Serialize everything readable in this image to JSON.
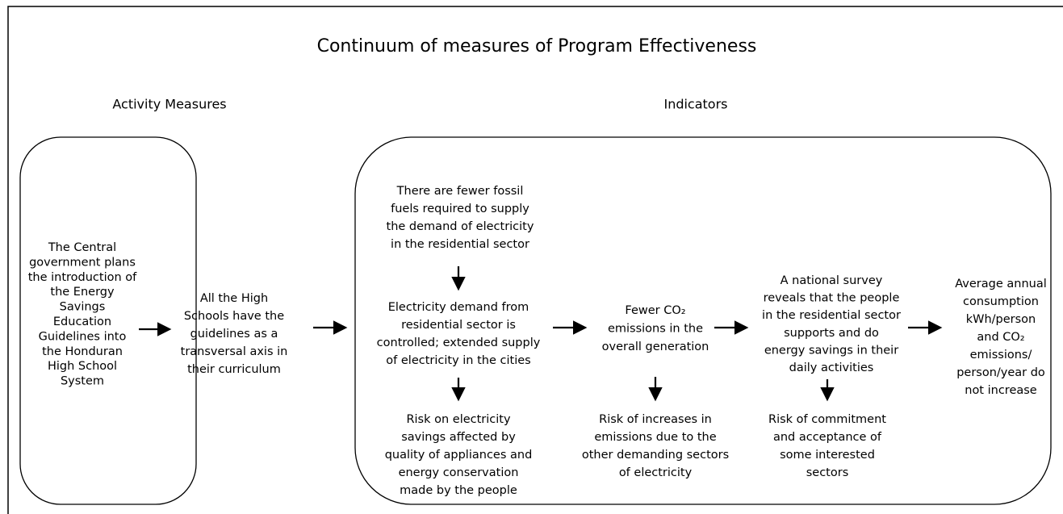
{
  "title": "Continuum of measures of Program Effectiveness",
  "sections": [
    "Activity Measures",
    "Indicators"
  ],
  "nodes": [
    {
      "lines": [
        "The Central",
        "government plans",
        "the introduction of",
        "the Energy",
        "Savings",
        "Education",
        "Guidelines into",
        "the Honduran",
        "High School",
        "System"
      ]
    },
    {
      "lines": [
        "All the High",
        "Schools have the",
        "guidelines as a",
        "transversal axis in",
        "their curriculum"
      ]
    },
    {
      "lines": [
        "There are fewer fossil",
        "fuels required to supply",
        "the demand of electricity",
        "in the residential sector"
      ]
    },
    {
      "lines": [
        "Electricity demand from",
        "residential sector is",
        "controlled; extended supply",
        "of electricity in the cities"
      ]
    },
    {
      "lines": [
        "Risk on electricity",
        "savings affected by",
        "quality of appliances and",
        "energy conservation",
        "made by the people"
      ]
    },
    {
      "lines": [
        "Fewer CO₂",
        "emissions in the",
        "overall generation"
      ]
    },
    {
      "lines": [
        "Risk of increases in",
        "emissions due to the",
        "other demanding sectors",
        "of electricity"
      ]
    },
    {
      "lines": [
        "A national survey",
        "reveals that the people",
        "in the residential sector",
        "supports and do",
        "energy savings in their",
        "daily activities"
      ]
    },
    {
      "lines": [
        "Risk of commitment",
        "and acceptance of",
        "some interested",
        "sectors"
      ]
    },
    {
      "lines": [
        "Average annual",
        "consumption",
        "kWh/person",
        "and CO₂",
        "emissions/",
        "person/year do",
        "not increase"
      ]
    }
  ]
}
